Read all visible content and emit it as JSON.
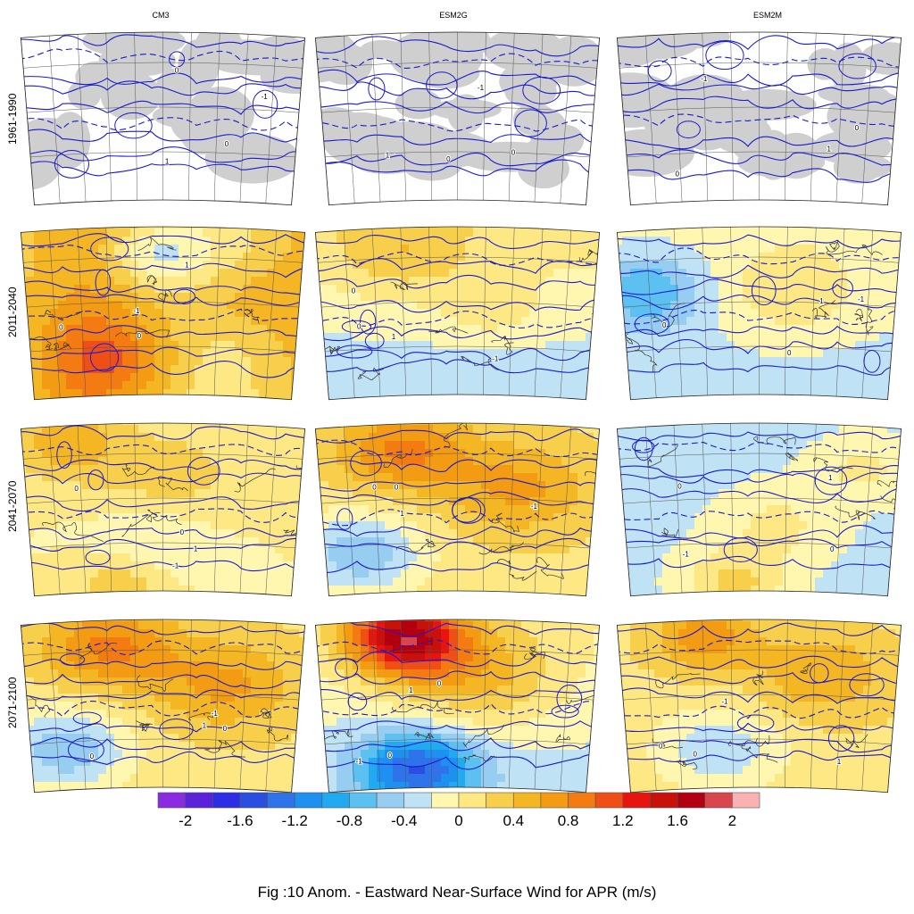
{
  "columns": [
    "CM3",
    "ESM2G",
    "ESM2M"
  ],
  "rows": [
    "1961-1990",
    "2011-2040",
    "2041-2070",
    "2071-2100"
  ],
  "panels": [
    [
      "baseline",
      "baseline",
      "baseline"
    ],
    [
      "warm_north_cool",
      "cool_south",
      "cool_west"
    ],
    [
      "warm_center",
      "hot_north",
      "cool_mixed"
    ],
    [
      "hot_north",
      "very_hot_north",
      "warm_mid"
    ]
  ],
  "colorbar": {
    "min": -2.2,
    "max": 2.2,
    "step": 0.2,
    "tick_labels": [
      "-2",
      "-1.6",
      "-1.2",
      "-0.8",
      "-0.4",
      "0",
      "0.4",
      "0.8",
      "1.2",
      "1.6",
      "2"
    ],
    "colors": [
      "#8a2be2",
      "#5a23d9",
      "#2e2de6",
      "#2a4fe0",
      "#2f73ea",
      "#1e90f0",
      "#21aaf0",
      "#5cc1f0",
      "#96cdf0",
      "#bfe2f5",
      "#fff7b0",
      "#fde883",
      "#f8cf4a",
      "#f5b623",
      "#f39b12",
      "#f37b12",
      "#f04e17",
      "#e8150f",
      "#c8110b",
      "#b20010",
      "#d8454c",
      "#f9b1b1"
    ]
  },
  "contour_labels": [
    "0",
    "1",
    "-1"
  ],
  "caption": "Fig :10  Anom.  - Eastward Near-Surface Wind for APR (m/s)",
  "style": {
    "land_gray": "#cfcfcf",
    "contour_blue": "#1a1ad0",
    "coast": "#333333"
  }
}
